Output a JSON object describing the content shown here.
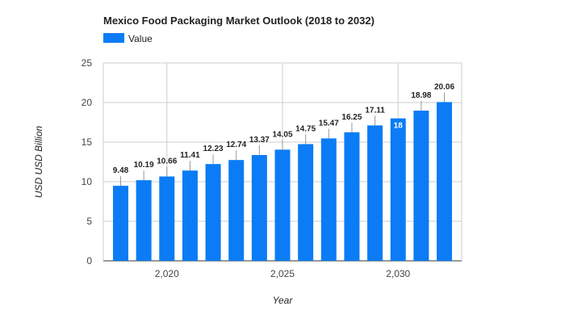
{
  "chart_data": {
    "type": "bar",
    "title": "Mexico Food Packaging Market Outlook (2018 to 2032)",
    "xlabel": "Year",
    "ylabel": "USD USD Billion",
    "x": [
      2018,
      2019,
      2020,
      2021,
      2022,
      2023,
      2024,
      2025,
      2026,
      2027,
      2028,
      2029,
      2030,
      2031,
      2032
    ],
    "series": [
      {
        "name": "Value",
        "color": "#0b7cf5",
        "values": [
          9.48,
          10.19,
          10.66,
          11.41,
          12.23,
          12.74,
          13.37,
          14.05,
          14.75,
          15.47,
          16.25,
          17.11,
          18,
          18.98,
          20.06
        ]
      }
    ],
    "data_labels": [
      "9.48",
      "10.19",
      "10.66",
      "11.41",
      "12.23",
      "12.74",
      "13.37",
      "14.05",
      "14.75",
      "15.47",
      "16.25",
      "17.11",
      "18",
      "18.98",
      "20.06"
    ],
    "ylim": [
      0,
      25
    ],
    "y_ticks": [
      0,
      5,
      10,
      15,
      20,
      25
    ],
    "x_ticks": [
      2020,
      2025,
      2030
    ],
    "x_tick_labels": [
      "2,020",
      "2,025",
      "2,030"
    ],
    "grid": true,
    "legend_position": "top-left"
  }
}
